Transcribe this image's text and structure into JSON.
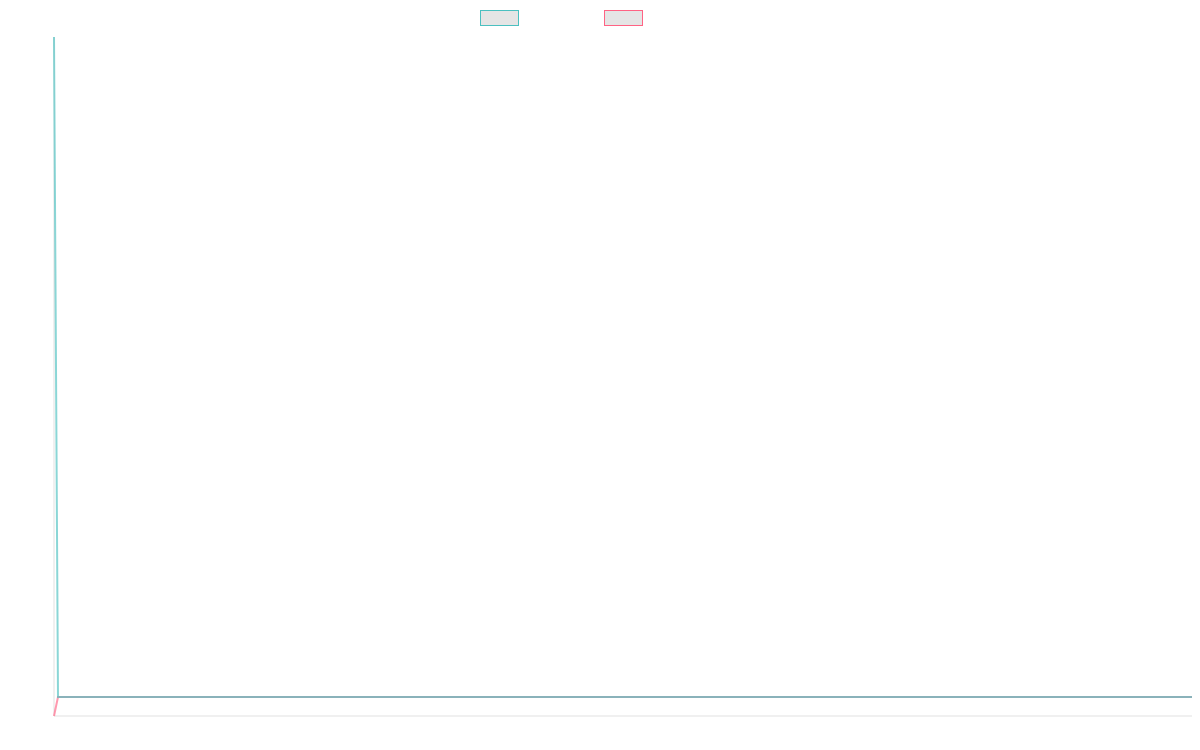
{
  "chart_data": {
    "type": "line",
    "title": "",
    "xlabel": "",
    "ylabel": "",
    "x": [
      0,
      1,
      285
    ],
    "xlim": [
      0,
      285
    ],
    "ylim": [
      0,
      100
    ],
    "grid": false,
    "legend_position": "top",
    "series": [
      {
        "label": "",
        "color": "#4bc0c0",
        "values": [
          100,
          2.8,
          2.8
        ]
      },
      {
        "label": "",
        "color": "#ff6384",
        "values": [
          0,
          2.8,
          2.8
        ]
      }
    ],
    "axis_color": "#e0e0e0",
    "legend_fill": "#e5e5e5"
  }
}
